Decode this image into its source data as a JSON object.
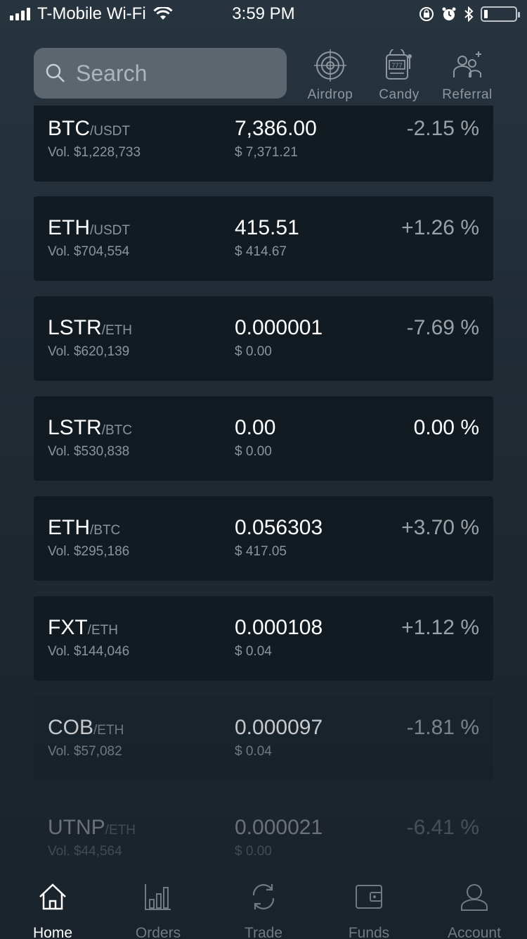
{
  "status_bar": {
    "carrier": "T-Mobile Wi-Fi",
    "time": "3:59 PM"
  },
  "search": {
    "placeholder": "Search"
  },
  "quick_links": [
    {
      "label": "Airdrop",
      "icon": "target-icon"
    },
    {
      "label": "Candy",
      "icon": "slot-machine-icon"
    },
    {
      "label": "Referral",
      "icon": "referral-icon"
    }
  ],
  "markets": [
    {
      "base": "BTC",
      "quote": "/USDT",
      "volume": "Vol. $1,228,733",
      "price": "7,386.00",
      "usd": "$ 7,371.21",
      "change": "-2.15 %"
    },
    {
      "base": "ETH",
      "quote": "/USDT",
      "volume": "Vol. $704,554",
      "price": "415.51",
      "usd": "$ 414.67",
      "change": "+1.26 %"
    },
    {
      "base": "LSTR",
      "quote": "/ETH",
      "volume": "Vol. $620,139",
      "price": "0.000001",
      "usd": "$ 0.00",
      "change": "-7.69 %"
    },
    {
      "base": "LSTR",
      "quote": "/BTC",
      "volume": "Vol. $530,838",
      "price": "0.00",
      "usd": "$ 0.00",
      "change": "0.00 %"
    },
    {
      "base": "ETH",
      "quote": "/BTC",
      "volume": "Vol. $295,186",
      "price": "0.056303",
      "usd": "$ 417.05",
      "change": "+3.70 %"
    },
    {
      "base": "FXT",
      "quote": "/ETH",
      "volume": "Vol. $144,046",
      "price": "0.000108",
      "usd": "$ 0.04",
      "change": "+1.12 %"
    },
    {
      "base": "COB",
      "quote": "/ETH",
      "volume": "Vol. $57,082",
      "price": "0.000097",
      "usd": "$ 0.04",
      "change": "-1.81 %"
    },
    {
      "base": "UTNP",
      "quote": "/ETH",
      "volume": "Vol. $44,564",
      "price": "0.000021",
      "usd": "$ 0.00",
      "change": "-6.41 %"
    }
  ],
  "tabs": [
    {
      "label": "Home",
      "icon": "home-icon",
      "active": true
    },
    {
      "label": "Orders",
      "icon": "bar-chart-icon",
      "active": false
    },
    {
      "label": "Trade",
      "icon": "refresh-icon",
      "active": false
    },
    {
      "label": "Funds",
      "icon": "wallet-icon",
      "active": false
    },
    {
      "label": "Account",
      "icon": "user-icon",
      "active": false
    }
  ],
  "colors": {
    "card_background": "#121b22",
    "muted_text": "#8b949b",
    "active_tab": "#ffffff",
    "inactive_tab": "#6f7a82"
  }
}
